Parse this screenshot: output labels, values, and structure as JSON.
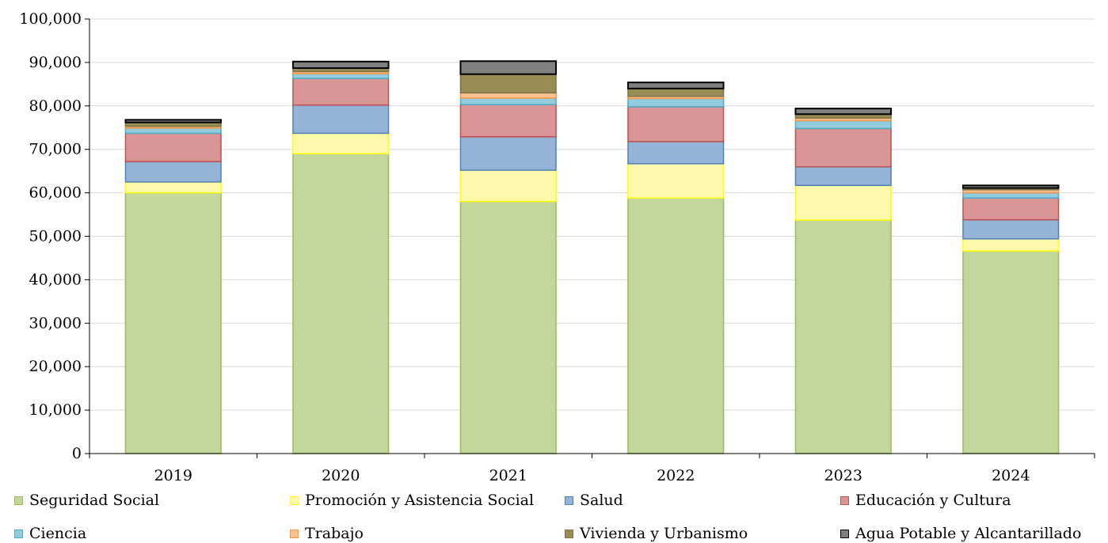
{
  "chart_data": {
    "type": "bar",
    "stacked": true,
    "title": "",
    "xlabel": "",
    "ylabel": "",
    "ylim": [
      0,
      100000
    ],
    "y_ticks": [
      "0",
      "10,000",
      "20,000",
      "30,000",
      "40,000",
      "50,000",
      "60,000",
      "70,000",
      "80,000",
      "90,000",
      "100,000"
    ],
    "grid": true,
    "legend_position": "bottom",
    "categories": [
      "2019",
      "2020",
      "2021",
      "2022",
      "2023",
      "2024"
    ],
    "series": [
      {
        "name": "Seguridad Social",
        "fill": "#c3d69b",
        "stroke": "#9bbb59",
        "values": [
          60000,
          69000,
          58000,
          58800,
          53700,
          46600
        ]
      },
      {
        "name": "Promoción y Asistencia Social",
        "fill": "#fcf9ab",
        "stroke": "#ffff00",
        "values": [
          2500,
          4700,
          7200,
          7900,
          8000,
          2800
        ]
      },
      {
        "name": "Salud",
        "fill": "#95b3d7",
        "stroke": "#4f81bd",
        "values": [
          4700,
          6500,
          7700,
          5100,
          4300,
          4400
        ]
      },
      {
        "name": "Educación y Cultura",
        "fill": "#d99694",
        "stroke": "#c0504d",
        "values": [
          6500,
          6100,
          7400,
          8000,
          8800,
          5000
        ]
      },
      {
        "name": "Ciencia",
        "fill": "#93cddd",
        "stroke": "#4bacc6",
        "values": [
          1200,
          1100,
          1500,
          1900,
          1800,
          1200
        ]
      },
      {
        "name": "Trabajo",
        "fill": "#fac090",
        "stroke": "#f79646",
        "values": [
          400,
          500,
          1200,
          500,
          600,
          700
        ]
      },
      {
        "name": "Vivienda y Urbanismo",
        "fill": "#988b53",
        "stroke": "#7f7345",
        "values": [
          900,
          800,
          4300,
          1800,
          900,
          400
        ]
      },
      {
        "name": "Agua Potable y Alcantarillado",
        "fill": "#808080",
        "stroke": "#000000",
        "values": [
          600,
          1500,
          3000,
          1400,
          1300,
          600
        ]
      }
    ]
  }
}
